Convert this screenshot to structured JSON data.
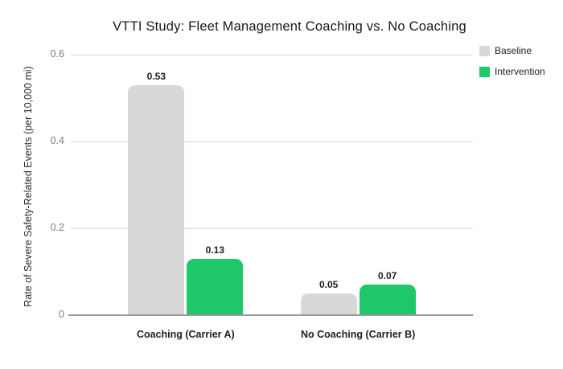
{
  "chart_data": {
    "type": "bar",
    "title": "VTTI Study: Fleet Management Coaching vs. No Coaching",
    "xlabel": "",
    "ylabel": "Rate of Severe Safety-Related Events (per 10,000 mi)",
    "categories": [
      "Coaching (Carrier A)",
      "No Coaching (Carrier B)"
    ],
    "series": [
      {
        "name": "Baseline",
        "color": "#d8d8d8",
        "values": [
          0.53,
          0.05
        ],
        "labels": [
          "0.53",
          "0.05"
        ]
      },
      {
        "name": "Intervention",
        "color": "#1ec869",
        "values": [
          0.13,
          0.07
        ],
        "labels": [
          "0.13",
          "0.07"
        ]
      }
    ],
    "ylim": [
      0,
      0.6
    ],
    "y_ticks": [
      0,
      0.2,
      0.4,
      0.6
    ],
    "y_tick_labels": [
      "0",
      "0.2",
      "0.4",
      "0.6"
    ],
    "grid": true,
    "legend_position": "right"
  },
  "colors": {
    "grid": "#d6d6d6",
    "axis": "#9b9b9b",
    "tick_text": "#7b7b7b",
    "label_text": "#1f1f1f",
    "background": "#ffffff"
  }
}
